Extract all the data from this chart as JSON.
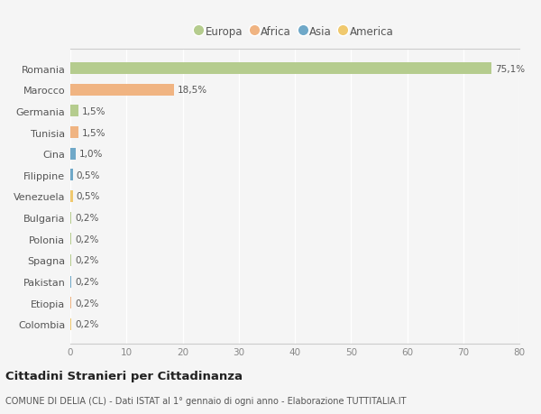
{
  "categories": [
    "Romania",
    "Marocco",
    "Germania",
    "Tunisia",
    "Cina",
    "Filippine",
    "Venezuela",
    "Bulgaria",
    "Polonia",
    "Spagna",
    "Pakistan",
    "Etiopia",
    "Colombia"
  ],
  "values": [
    75.1,
    18.5,
    1.5,
    1.5,
    1.0,
    0.5,
    0.5,
    0.2,
    0.2,
    0.2,
    0.2,
    0.2,
    0.2
  ],
  "labels": [
    "75,1%",
    "18,5%",
    "1,5%",
    "1,5%",
    "1,0%",
    "0,5%",
    "0,5%",
    "0,2%",
    "0,2%",
    "0,2%",
    "0,2%",
    "0,2%",
    "0,2%"
  ],
  "colors": [
    "#b5cc8e",
    "#f0b482",
    "#b5cc8e",
    "#f0b482",
    "#6fa8c8",
    "#6fa8c8",
    "#f0c96e",
    "#b5cc8e",
    "#b5cc8e",
    "#b5cc8e",
    "#6fa8c8",
    "#f0b482",
    "#f0c96e"
  ],
  "legend_labels": [
    "Europa",
    "Africa",
    "Asia",
    "America"
  ],
  "legend_colors": [
    "#b5cc8e",
    "#f0b482",
    "#6fa8c8",
    "#f0c96e"
  ],
  "xlim": [
    0,
    80
  ],
  "xticks": [
    0,
    10,
    20,
    30,
    40,
    50,
    60,
    70,
    80
  ],
  "title": "Cittadini Stranieri per Cittadinanza",
  "subtitle": "COMUNE DI DELIA (CL) - Dati ISTAT al 1° gennaio di ogni anno - Elaborazione TUTTITALIA.IT",
  "bg_color": "#f5f5f5",
  "grid_color": "#ffffff",
  "bar_height": 0.55
}
